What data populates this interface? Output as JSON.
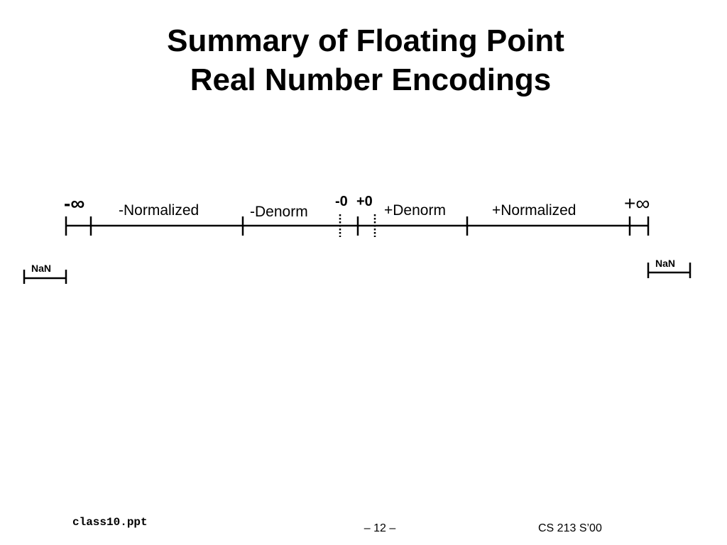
{
  "title": {
    "line1": "Summary of Floating Point",
    "line2": "Real Number Encodings"
  },
  "number_line": {
    "neg_infinity": "-∞",
    "pos_infinity": "+∞",
    "neg_zero": "-0",
    "pos_zero": "+0",
    "neg_normalized": "-Normalized",
    "neg_denorm": "-Denorm",
    "pos_denorm": "+Denorm",
    "pos_normalized": "+Normalized",
    "nan_left": "NaN",
    "nan_right": "NaN"
  },
  "footer": {
    "filename": "class10.ppt",
    "page": "– 12 –",
    "course": "CS 213 S’00"
  }
}
